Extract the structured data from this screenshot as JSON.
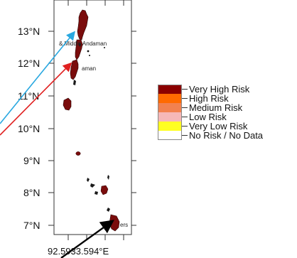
{
  "map": {
    "y_axis_labels": [
      "13°N",
      "12°N",
      "11°N",
      "10°N",
      "9°N",
      "8°N",
      "7°N"
    ],
    "x_axis_labels": [
      "92.5",
      "93",
      "93.5",
      "94",
      "°E"
    ],
    "x_axis_label_text": "92.5933.594°E",
    "place_labels": {
      "upper": "& Middle Andaman",
      "middle": "aman",
      "lower": "ers"
    }
  },
  "legend": {
    "items": [
      {
        "label": "Very High Risk",
        "color": "#8b0000"
      },
      {
        "label": "High Risk",
        "color": "#ff6a00"
      },
      {
        "label": "Medium Risk",
        "color": "#f2814f"
      },
      {
        "label": "Low Risk",
        "color": "#f6b8b8"
      },
      {
        "label": "Very Low Risk",
        "color": "#ffff22"
      },
      {
        "label": "No Risk / No Data",
        "color": "#ffffff"
      }
    ]
  },
  "arrows": {
    "cyan": "#29a8e0",
    "red": "#e02020",
    "black": "#000000"
  }
}
